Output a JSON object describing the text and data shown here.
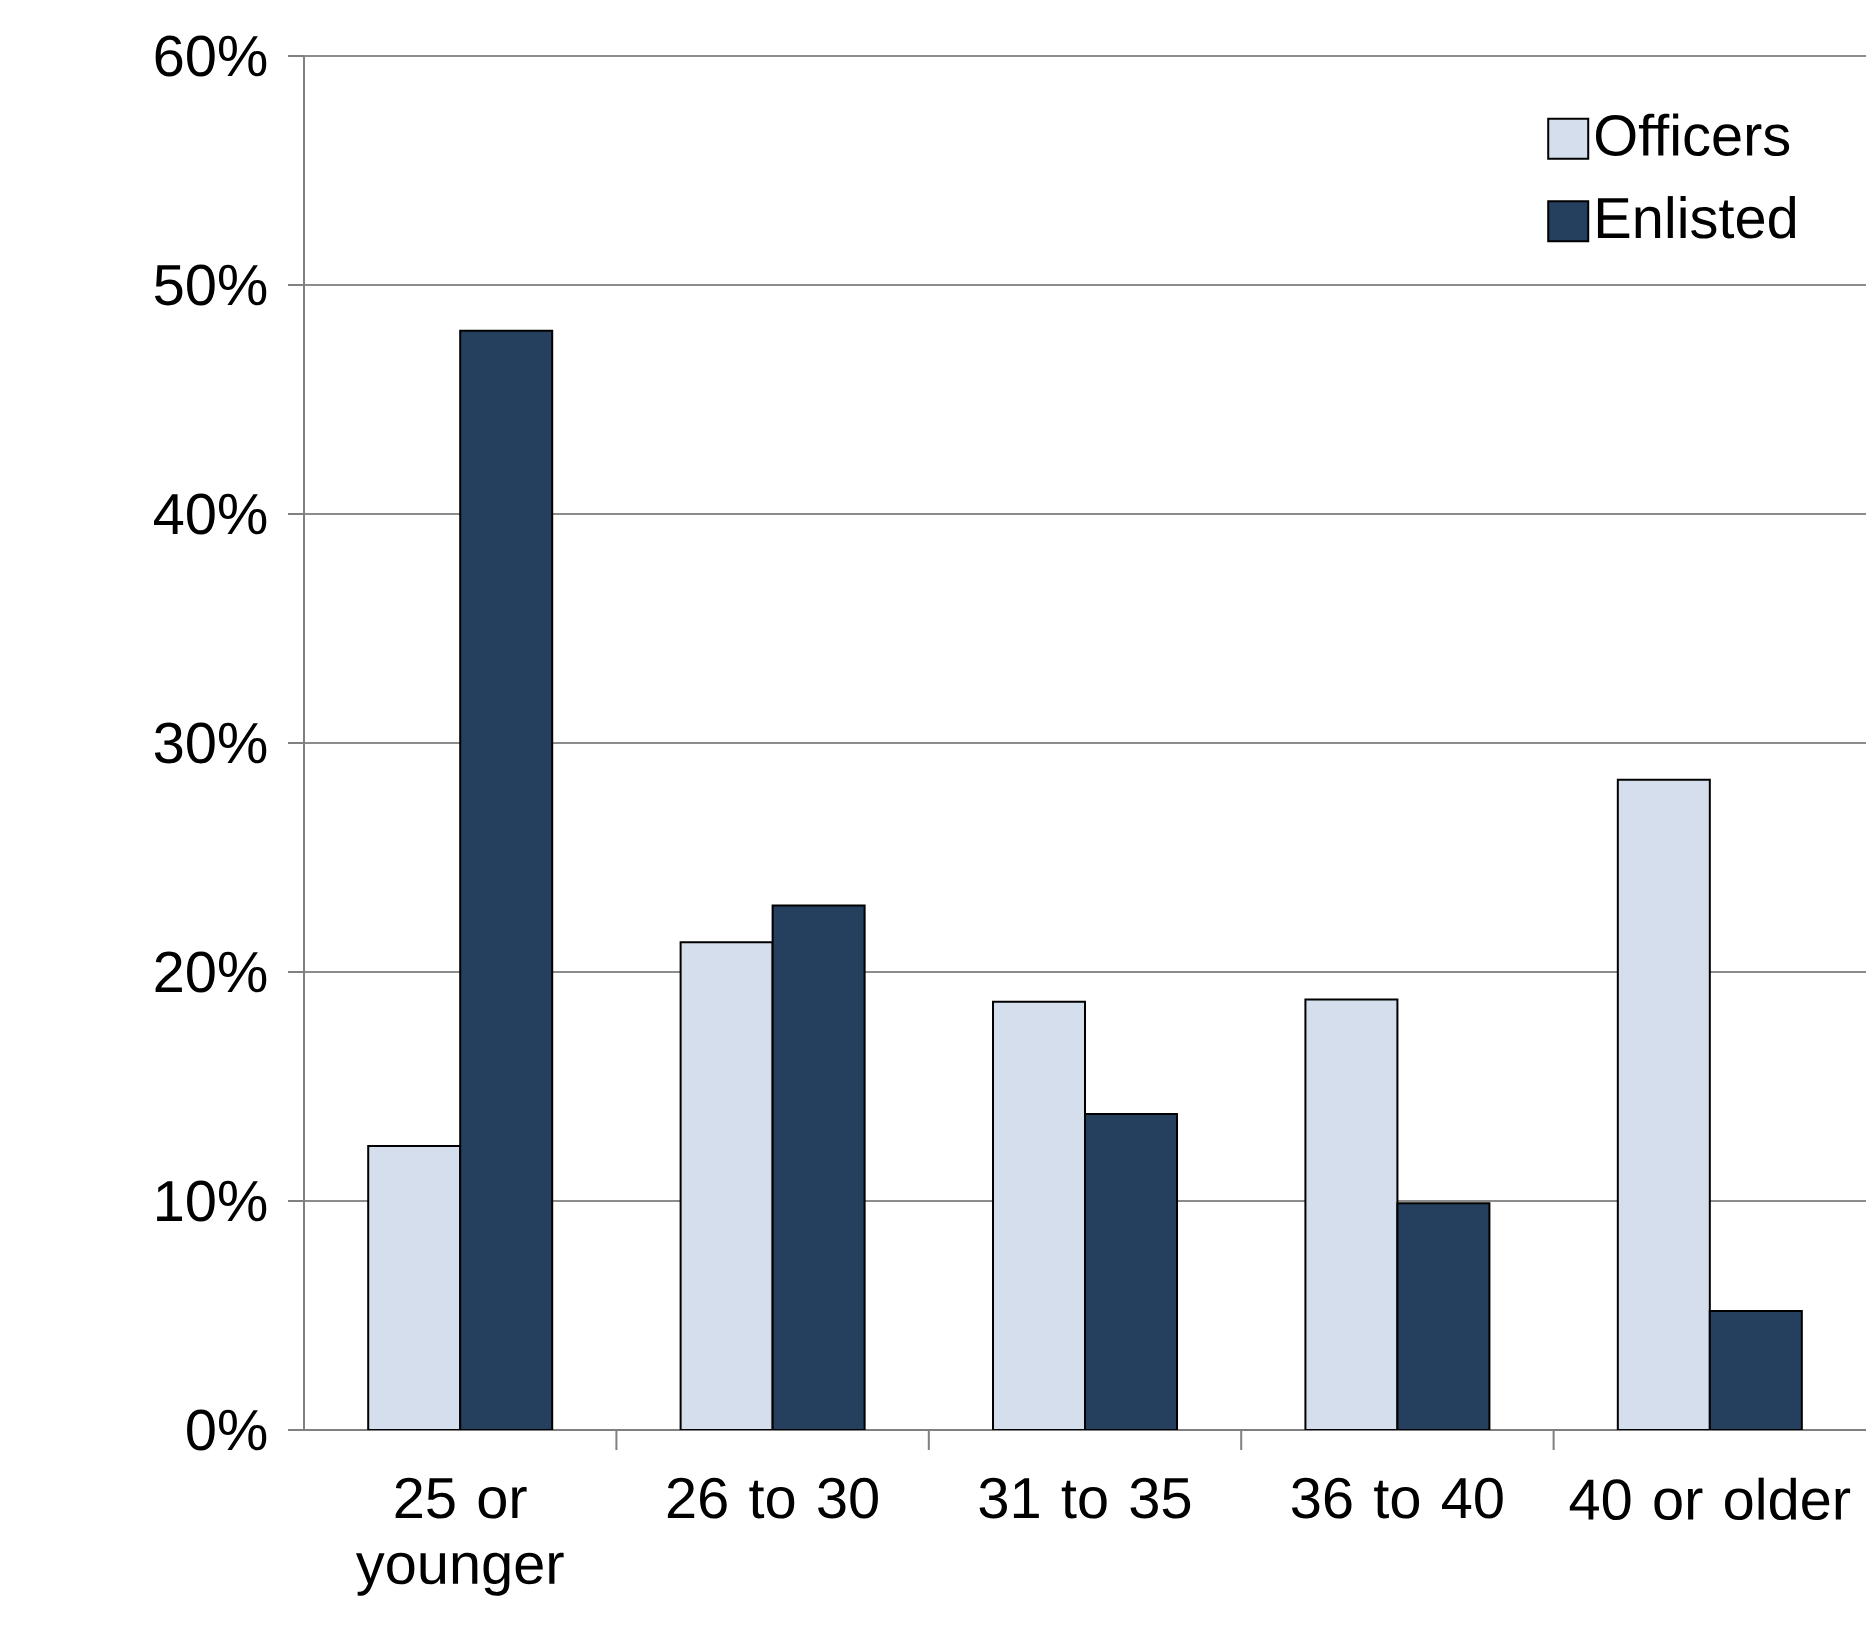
{
  "chart_data": {
    "type": "bar",
    "categories": [
      "25 or younger",
      "26 to 30",
      "31 to 35",
      "36 to 40",
      "40 or older"
    ],
    "series": [
      {
        "name": "Officers",
        "color": "#d5deed",
        "values": [
          12.4,
          21.3,
          18.7,
          18.8,
          28.4
        ]
      },
      {
        "name": "Enlisted",
        "color": "#253f5f",
        "values": [
          48.0,
          22.9,
          13.8,
          9.9,
          5.2
        ]
      }
    ],
    "ylim": [
      0,
      60
    ],
    "yticks": [
      {
        "value": 0,
        "label": "0%"
      },
      {
        "value": 10,
        "label": "10%"
      },
      {
        "value": 20,
        "label": "20%"
      },
      {
        "value": 30,
        "label": "30%"
      },
      {
        "value": 40,
        "label": "40%"
      },
      {
        "value": 50,
        "label": "50%"
      },
      {
        "value": 60,
        "label": "60%"
      }
    ],
    "grid": "y",
    "legend": "top right"
  }
}
